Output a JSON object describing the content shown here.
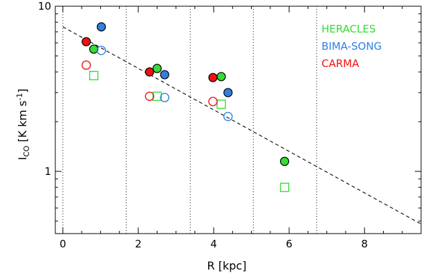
{
  "chart_data": {
    "type": "scatter",
    "xlabel": "R [kpc]",
    "ylabel": "I_CO [K km s^-1]",
    "xlim": [
      -0.2,
      9.5
    ],
    "ylim": [
      0.42,
      10
    ],
    "yscale": "log",
    "xticks": [
      0,
      2,
      4,
      6,
      8
    ],
    "yticks": [
      1,
      10
    ],
    "ytick_labels": [
      "1",
      "10"
    ],
    "vertical_dotted_lines_x": [
      0,
      1.68,
      3.38,
      5.05,
      6.73
    ],
    "fit_line": {
      "style": "dashed",
      "x": [
        0,
        9.5
      ],
      "y": [
        7.5,
        0.48
      ]
    },
    "legend_position": "top-right",
    "colors": {
      "HERACLES": "#33dd33",
      "BIMA-SONG": "#2f80e0",
      "CARMA": "#ee1111"
    },
    "series": [
      {
        "name": "HERACLES",
        "filled": {
          "marker": "circle",
          "x": [
            0.82,
            2.5,
            4.2,
            5.88
          ],
          "y": [
            5.5,
            4.2,
            3.75,
            1.15
          ]
        },
        "open": {
          "marker": "square",
          "x": [
            0.82,
            2.5,
            4.2,
            5.88
          ],
          "y": [
            3.8,
            2.85,
            2.55,
            0.8
          ]
        }
      },
      {
        "name": "BIMA-SONG",
        "filled": {
          "marker": "circle",
          "x": [
            1.02,
            2.7,
            4.38
          ],
          "y": [
            7.5,
            3.85,
            3.0
          ]
        },
        "open": {
          "marker": "circle",
          "x": [
            1.02,
            2.7,
            4.38
          ],
          "y": [
            5.4,
            2.8,
            2.15
          ]
        }
      },
      {
        "name": "CARMA",
        "filled": {
          "marker": "circle",
          "x": [
            0.62,
            2.3,
            3.98
          ],
          "y": [
            6.1,
            4.0,
            3.7
          ]
        },
        "open": {
          "marker": "circle",
          "x": [
            0.62,
            2.3,
            3.98
          ],
          "y": [
            4.4,
            2.85,
            2.65
          ]
        }
      }
    ],
    "legend": [
      "HERACLES",
      "BIMA-SONG",
      "CARMA"
    ]
  }
}
